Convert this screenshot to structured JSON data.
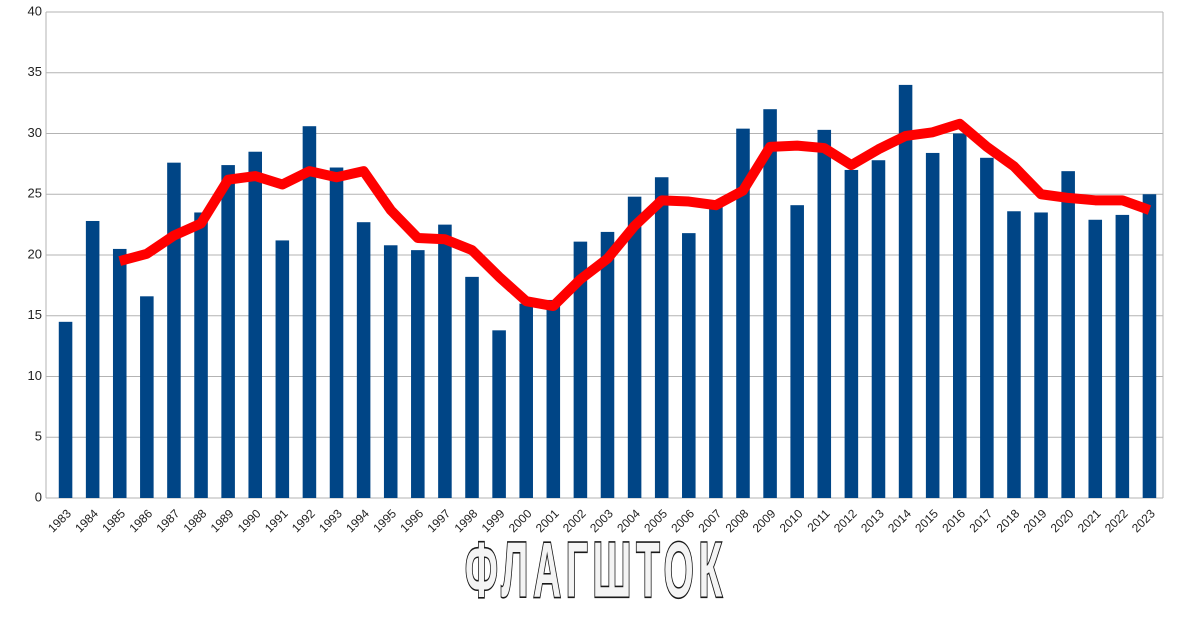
{
  "chart_data": {
    "type": "bar_line",
    "watermark": "ФЛАГШТОК",
    "categories": [
      "1983",
      "1984",
      "1985",
      "1986",
      "1987",
      "1988",
      "1989",
      "1990",
      "1991",
      "1992",
      "1993",
      "1994",
      "1995",
      "1996",
      "1997",
      "1998",
      "1999",
      "2000",
      "2001",
      "2002",
      "2003",
      "2004",
      "2005",
      "2006",
      "2007",
      "2008",
      "2009",
      "2010",
      "2011",
      "2012",
      "2013",
      "2014",
      "2015",
      "2016",
      "2017",
      "2018",
      "2019",
      "2020",
      "2021",
      "2022",
      "2023"
    ],
    "series": [
      {
        "type": "bar",
        "color": "#004586",
        "values": [
          14.5,
          22.8,
          20.5,
          16.6,
          27.6,
          23.5,
          27.4,
          28.5,
          21.2,
          30.6,
          27.2,
          22.7,
          20.8,
          20.4,
          22.5,
          18.2,
          13.8,
          16.0,
          16.3,
          21.1,
          21.9,
          24.8,
          26.4,
          21.8,
          24.2,
          30.4,
          32.0,
          24.1,
          30.3,
          27.0,
          27.8,
          34.0,
          28.4,
          30.0,
          28.0,
          23.6,
          23.5,
          26.9,
          22.9,
          23.3,
          25.0
        ]
      },
      {
        "type": "line",
        "color": "#ff0000",
        "values": [
          null,
          null,
          19.5,
          20.1,
          21.6,
          22.6,
          26.2,
          26.5,
          25.8,
          26.9,
          26.4,
          26.9,
          23.7,
          21.4,
          21.3,
          20.4,
          18.2,
          16.2,
          15.8,
          18.0,
          19.7,
          22.4,
          24.5,
          24.4,
          24.1,
          25.3,
          28.9,
          29.0,
          28.8,
          27.4,
          28.7,
          29.8,
          30.1,
          30.8,
          28.9,
          27.3,
          25.0,
          24.7,
          24.5,
          24.5,
          23.7
        ]
      }
    ],
    "ylim": [
      0,
      40
    ],
    "yticks": [
      0,
      5,
      10,
      15,
      20,
      25,
      30,
      35,
      40
    ],
    "grid": true
  }
}
